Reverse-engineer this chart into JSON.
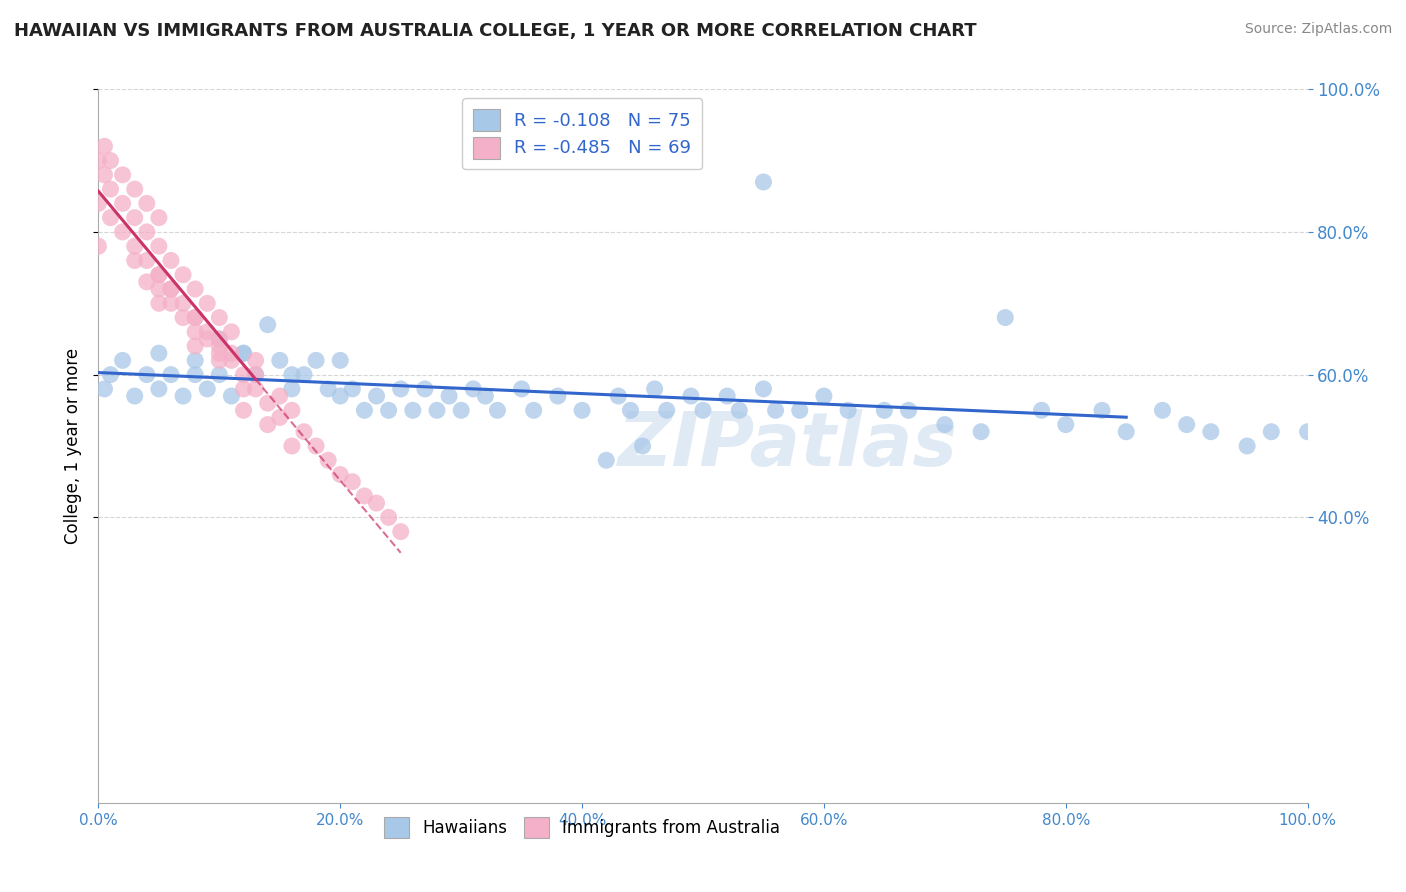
{
  "title": "HAWAIIAN VS IMMIGRANTS FROM AUSTRALIA COLLEGE, 1 YEAR OR MORE CORRELATION CHART",
  "source": "Source: ZipAtlas.com",
  "ylabel": "College, 1 year or more",
  "xmin": 0.0,
  "xmax": 1.0,
  "ymin": 0.0,
  "ymax": 1.0,
  "hawaiians_R": -0.108,
  "hawaiians_N": 75,
  "australia_R": -0.485,
  "australia_N": 69,
  "hawaiians_color": "#a8c8e8",
  "australia_color": "#f4b0c8",
  "hawaiians_line_color": "#3366cc",
  "australia_line_color": "#cc3366",
  "background_color": "#ffffff",
  "grid_color": "#cccccc",
  "tick_color": "#4488cc",
  "hawaiians_x": [
    0.005,
    0.01,
    0.02,
    0.03,
    0.04,
    0.05,
    0.05,
    0.06,
    0.07,
    0.08,
    0.09,
    0.1,
    0.1,
    0.11,
    0.12,
    0.13,
    0.14,
    0.15,
    0.16,
    0.17,
    0.18,
    0.19,
    0.2,
    0.21,
    0.22,
    0.23,
    0.24,
    0.25,
    0.26,
    0.27,
    0.28,
    0.29,
    0.3,
    0.31,
    0.32,
    0.33,
    0.35,
    0.36,
    0.38,
    0.4,
    0.42,
    0.43,
    0.44,
    0.45,
    0.46,
    0.47,
    0.49,
    0.5,
    0.52,
    0.53,
    0.55,
    0.56,
    0.58,
    0.6,
    0.62,
    0.65,
    0.67,
    0.7,
    0.73,
    0.75,
    0.78,
    0.8,
    0.83,
    0.85,
    0.88,
    0.9,
    0.92,
    0.95,
    0.97,
    1.0,
    0.08,
    0.12,
    0.16,
    0.2,
    0.55
  ],
  "hawaiians_y": [
    0.58,
    0.6,
    0.62,
    0.57,
    0.6,
    0.58,
    0.63,
    0.6,
    0.57,
    0.62,
    0.58,
    0.6,
    0.65,
    0.57,
    0.63,
    0.6,
    0.67,
    0.62,
    0.58,
    0.6,
    0.62,
    0.58,
    0.57,
    0.58,
    0.55,
    0.57,
    0.55,
    0.58,
    0.55,
    0.58,
    0.55,
    0.57,
    0.55,
    0.58,
    0.57,
    0.55,
    0.58,
    0.55,
    0.57,
    0.55,
    0.48,
    0.57,
    0.55,
    0.5,
    0.58,
    0.55,
    0.57,
    0.55,
    0.57,
    0.55,
    0.58,
    0.55,
    0.55,
    0.57,
    0.55,
    0.55,
    0.55,
    0.53,
    0.52,
    0.68,
    0.55,
    0.53,
    0.55,
    0.52,
    0.55,
    0.53,
    0.52,
    0.5,
    0.52,
    0.52,
    0.6,
    0.63,
    0.6,
    0.62,
    0.87
  ],
  "australia_x": [
    0.0,
    0.0,
    0.0,
    0.005,
    0.005,
    0.01,
    0.01,
    0.01,
    0.02,
    0.02,
    0.02,
    0.03,
    0.03,
    0.03,
    0.04,
    0.04,
    0.04,
    0.05,
    0.05,
    0.05,
    0.06,
    0.06,
    0.07,
    0.07,
    0.08,
    0.08,
    0.09,
    0.09,
    0.1,
    0.1,
    0.11,
    0.11,
    0.12,
    0.13,
    0.13,
    0.14,
    0.15,
    0.16,
    0.17,
    0.18,
    0.19,
    0.2,
    0.21,
    0.22,
    0.23,
    0.24,
    0.25,
    0.12,
    0.14,
    0.16,
    0.08,
    0.1,
    0.12,
    0.05,
    0.07,
    0.09,
    0.11,
    0.13,
    0.15,
    0.05,
    0.06,
    0.08,
    0.1,
    0.03,
    0.04,
    0.05,
    0.06,
    0.08,
    0.1
  ],
  "australia_y": [
    0.78,
    0.84,
    0.9,
    0.88,
    0.92,
    0.82,
    0.86,
    0.9,
    0.8,
    0.84,
    0.88,
    0.78,
    0.82,
    0.86,
    0.76,
    0.8,
    0.84,
    0.74,
    0.78,
    0.82,
    0.72,
    0.76,
    0.7,
    0.74,
    0.68,
    0.72,
    0.66,
    0.7,
    0.64,
    0.68,
    0.62,
    0.66,
    0.6,
    0.58,
    0.62,
    0.56,
    0.54,
    0.55,
    0.52,
    0.5,
    0.48,
    0.46,
    0.45,
    0.43,
    0.42,
    0.4,
    0.38,
    0.55,
    0.53,
    0.5,
    0.64,
    0.62,
    0.58,
    0.7,
    0.68,
    0.65,
    0.63,
    0.6,
    0.57,
    0.74,
    0.72,
    0.68,
    0.65,
    0.76,
    0.73,
    0.72,
    0.7,
    0.66,
    0.63
  ],
  "yticks": [
    0.4,
    0.6,
    0.8,
    1.0
  ],
  "xticks": [
    0.0,
    0.2,
    0.4,
    0.6,
    0.8,
    1.0
  ]
}
